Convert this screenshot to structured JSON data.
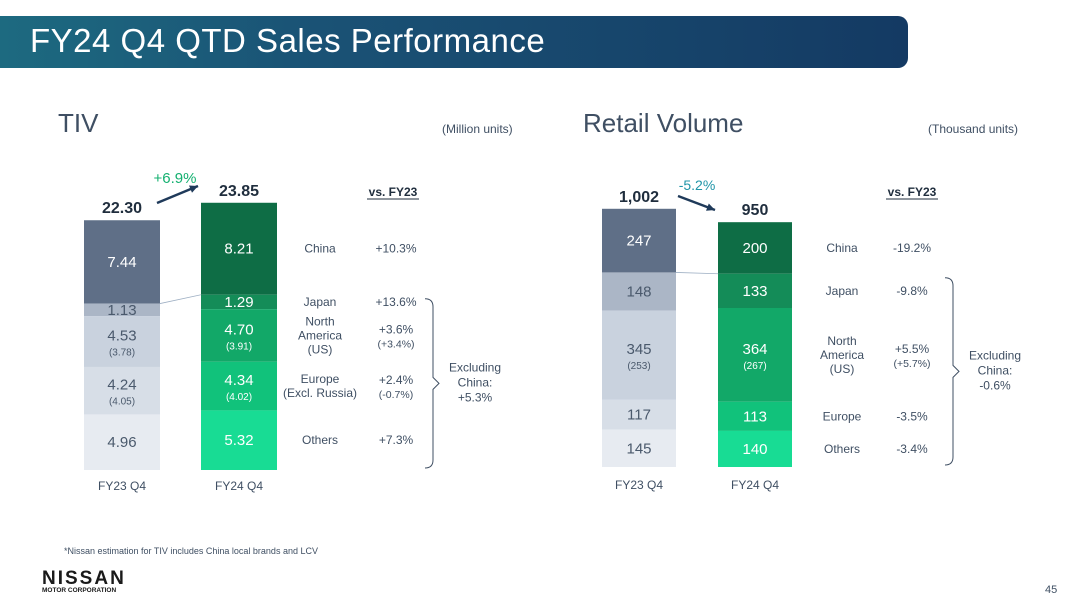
{
  "header": {
    "title": "FY24 Q4 QTD Sales Performance"
  },
  "footnote": "*Nissan estimation for TIV includes China local brands and LCV",
  "logo": {
    "name": "NISSAN",
    "sub": "MOTOR CORPORATION"
  },
  "page_number": "45",
  "colors": {
    "banner": "#1a5275",
    "fy23": [
      "#5f6f87",
      "#abb6c6",
      "#c9d2de",
      "#d7dee7",
      "#e7ebf1"
    ],
    "fy24": [
      "#0e6d45",
      "#148c58",
      "#12a868",
      "#11c27b",
      "#18dc94"
    ],
    "growth_green": "#14b070",
    "growth_blue": "#1f95a8"
  },
  "chart_data": [
    {
      "type": "bar",
      "title": "TIV",
      "unit": "(Million units)",
      "categories": [
        "FY23 Q4",
        "FY24 Q4"
      ],
      "totals": [
        "22.30",
        "23.85"
      ],
      "growth": "+6.9%",
      "comparison_header": "vs. FY23",
      "series": [
        {
          "name": "China",
          "values": [
            7.44,
            8.21
          ],
          "labels": [
            "7.44",
            "8.21"
          ],
          "sub_labels": [
            "",
            ""
          ],
          "change": "+10.3%",
          "change_sub": ""
        },
        {
          "name": "Japan",
          "values": [
            1.13,
            1.29
          ],
          "labels": [
            "1.13",
            "1.29"
          ],
          "sub_labels": [
            "",
            ""
          ],
          "change": "+13.6%",
          "change_sub": ""
        },
        {
          "name": "North America (US)",
          "name_lines": [
            "North",
            "America",
            "(US)"
          ],
          "values": [
            4.53,
            4.7
          ],
          "labels": [
            "4.53",
            "4.70"
          ],
          "sub_labels": [
            "(3.78)",
            "(3.91)"
          ],
          "change": "+3.6%",
          "change_sub": "(+3.4%)"
        },
        {
          "name": "Europe (Excl. Russia)",
          "name_lines": [
            "Europe",
            "(Excl. Russia)"
          ],
          "values": [
            4.24,
            4.34
          ],
          "labels": [
            "4.24",
            "4.34"
          ],
          "sub_labels": [
            "(4.05)",
            "(4.02)"
          ],
          "change": "+2.4%",
          "change_sub": "(-0.7%)"
        },
        {
          "name": "Others",
          "values": [
            4.96,
            5.32
          ],
          "labels": [
            "4.96",
            "5.32"
          ],
          "sub_labels": [
            "",
            ""
          ],
          "change": "+7.3%",
          "change_sub": ""
        }
      ],
      "bracket_note": [
        "Excluding",
        "China:",
        "+5.3%"
      ]
    },
    {
      "type": "bar",
      "title": "Retail Volume",
      "unit": "(Thousand units)",
      "categories": [
        "FY23 Q4",
        "FY24 Q4"
      ],
      "totals": [
        "1,002",
        "950"
      ],
      "growth": "-5.2%",
      "comparison_header": "vs. FY23",
      "series": [
        {
          "name": "China",
          "values": [
            247,
            200
          ],
          "labels": [
            "247",
            "200"
          ],
          "sub_labels": [
            "",
            ""
          ],
          "change": "-19.2%",
          "change_sub": ""
        },
        {
          "name": "Japan",
          "values": [
            148,
            133
          ],
          "labels": [
            "148",
            "133"
          ],
          "sub_labels": [
            "",
            ""
          ],
          "change": "-9.8%",
          "change_sub": ""
        },
        {
          "name": "North America (US)",
          "name_lines": [
            "North",
            "America",
            "(US)"
          ],
          "values": [
            345,
            364
          ],
          "labels": [
            "345",
            "364"
          ],
          "sub_labels": [
            "(253)",
            "(267)"
          ],
          "change": "+5.5%",
          "change_sub": "(+5.7%)"
        },
        {
          "name": "Europe",
          "values": [
            117,
            113
          ],
          "labels": [
            "117",
            "113"
          ],
          "sub_labels": [
            "",
            ""
          ],
          "change": "-3.5%",
          "change_sub": ""
        },
        {
          "name": "Others",
          "values": [
            145,
            140
          ],
          "labels": [
            "145",
            "140"
          ],
          "sub_labels": [
            "",
            ""
          ],
          "change": "-3.4%",
          "change_sub": ""
        }
      ],
      "bracket_note": [
        "Excluding",
        "China:",
        "-0.6%"
      ]
    }
  ]
}
